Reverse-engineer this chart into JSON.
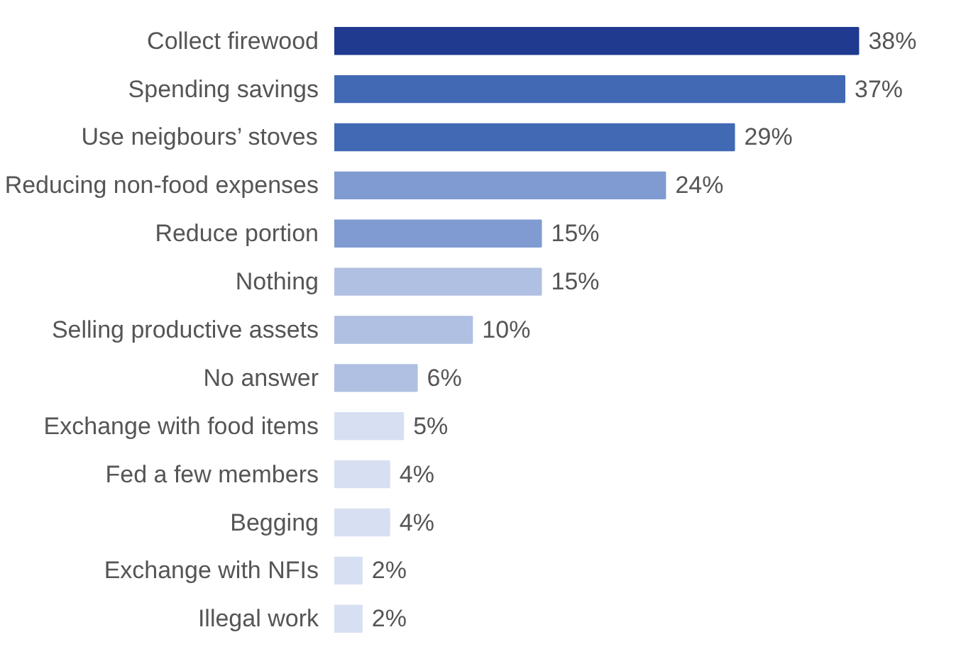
{
  "chart_data": {
    "type": "bar",
    "orientation": "horizontal",
    "categories": [
      "Collect firewood",
      "Spending savings",
      "Use neigbours’ stoves",
      "Reducing non-food expenses",
      "Reduce portion",
      "Nothing",
      "Selling productive assets",
      "No answer",
      "Exchange with food items",
      "Fed a few members",
      "Begging",
      "Exchange with NFIs",
      "Illegal work"
    ],
    "values": [
      38,
      37,
      29,
      24,
      15,
      15,
      10,
      6,
      5,
      4,
      4,
      2,
      2
    ],
    "value_labels": [
      "38%",
      "37%",
      "29%",
      "24%",
      "15%",
      "15%",
      "10%",
      "6%",
      "5%",
      "4%",
      "4%",
      "2%",
      "2%"
    ],
    "colors": [
      "#1f3a8f",
      "#4169b4",
      "#4169b4",
      "#7f9bd2",
      "#7f9bd2",
      "#b0c0e2",
      "#b0c0e2",
      "#b0c0e2",
      "#d7e0f2",
      "#d7e0f2",
      "#d7e0f2",
      "#d7e0f2",
      "#d7e0f2"
    ],
    "grid": false
  }
}
